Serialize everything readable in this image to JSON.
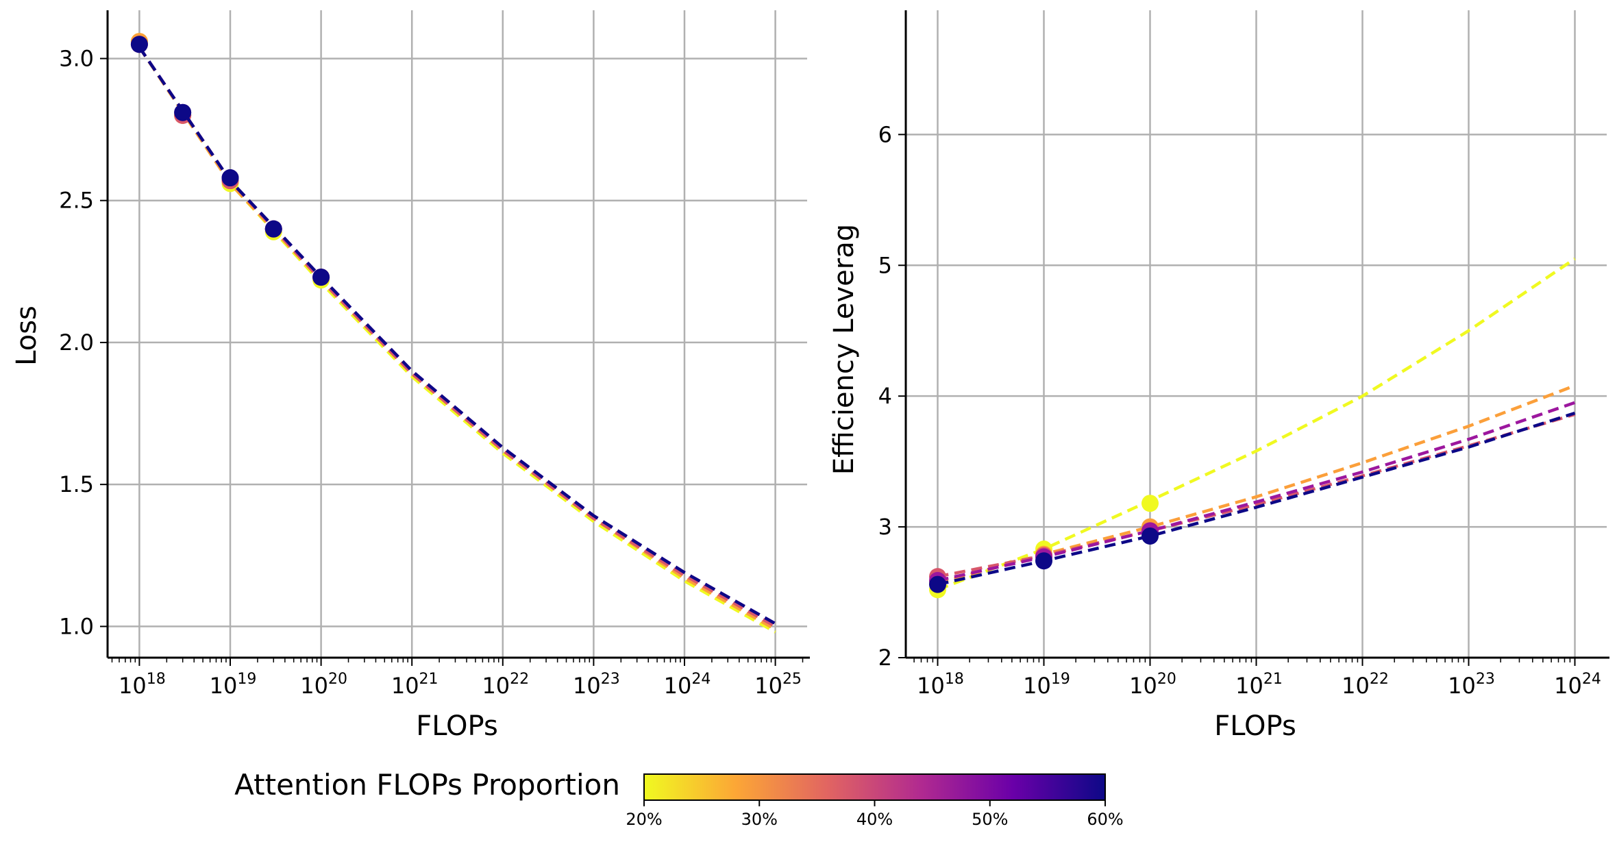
{
  "chart_data": [
    {
      "type": "line",
      "xscale": "log",
      "xlabel": "FLOPs",
      "ylabel": "Loss",
      "xlim_exp": [
        17.65,
        25.35
      ],
      "ylim": [
        0.89,
        3.17
      ],
      "x_tick_labels": [
        {
          "base": "10",
          "exp": "18"
        },
        {
          "base": "10",
          "exp": "19"
        },
        {
          "base": "10",
          "exp": "20"
        },
        {
          "base": "10",
          "exp": "21"
        },
        {
          "base": "10",
          "exp": "22"
        },
        {
          "base": "10",
          "exp": "23"
        },
        {
          "base": "10",
          "exp": "24"
        },
        {
          "base": "10",
          "exp": "25"
        }
      ],
      "y_ticks": [
        1.0,
        1.5,
        2.0,
        2.5,
        3.0
      ],
      "y_tick_labels": [
        "1.0",
        "1.5",
        "2.0",
        "2.5",
        "3.0"
      ],
      "grid": true,
      "series": [
        {
          "name": "20%",
          "color": "#f0f921",
          "points_x_exp": [
            18,
            18.477,
            19,
            19.477,
            20
          ],
          "points_y": [
            3.06,
            2.8,
            2.56,
            2.39,
            2.22
          ],
          "fit_x_exp": [
            18,
            19,
            20,
            21,
            22,
            23,
            24,
            25
          ],
          "fit_y": [
            3.04,
            2.56,
            2.21,
            1.88,
            1.61,
            1.37,
            1.16,
            0.98
          ]
        },
        {
          "name": "30%",
          "color": "#fb9f3a",
          "points_x_exp": [
            18,
            18.477,
            19,
            19.477,
            20
          ],
          "points_y": [
            3.06,
            2.8,
            2.57,
            2.4,
            2.23
          ],
          "fit_x_exp": [
            18,
            19,
            20,
            21,
            22,
            23,
            24,
            25
          ],
          "fit_y": [
            3.04,
            2.56,
            2.22,
            1.89,
            1.62,
            1.38,
            1.17,
            0.99
          ]
        },
        {
          "name": "40%",
          "color": "#d8576b",
          "points_x_exp": [
            18,
            18.477,
            19,
            19.477,
            20
          ],
          "points_y": [
            3.05,
            2.8,
            2.57,
            2.4,
            2.23
          ],
          "fit_x_exp": [
            18,
            19,
            20,
            21,
            22,
            23,
            24,
            25
          ],
          "fit_y": [
            3.04,
            2.57,
            2.22,
            1.89,
            1.62,
            1.38,
            1.18,
            1.0
          ]
        },
        {
          "name": "50%",
          "color": "#9c179e",
          "points_x_exp": [
            18,
            18.477,
            19,
            19.477,
            20
          ],
          "points_y": [
            3.05,
            2.81,
            2.58,
            2.4,
            2.23
          ],
          "fit_x_exp": [
            18,
            19,
            20,
            21,
            22,
            23,
            24,
            25
          ],
          "fit_y": [
            3.04,
            2.57,
            2.23,
            1.9,
            1.63,
            1.39,
            1.19,
            1.01
          ]
        },
        {
          "name": "60%",
          "color": "#0d0887",
          "points_x_exp": [
            18,
            18.477,
            19,
            19.477,
            20
          ],
          "points_y": [
            3.05,
            2.81,
            2.58,
            2.4,
            2.23
          ],
          "fit_x_exp": [
            18,
            19,
            20,
            21,
            22,
            23,
            24,
            25
          ],
          "fit_y": [
            3.04,
            2.57,
            2.23,
            1.9,
            1.63,
            1.39,
            1.19,
            1.01
          ]
        }
      ]
    },
    {
      "type": "line",
      "xscale": "log",
      "xlabel": "FLOPs",
      "ylabel": "Efficiency Leverag",
      "xlim_exp": [
        17.7,
        24.3
      ],
      "ylim": [
        2.0,
        6.95
      ],
      "x_tick_labels": [
        {
          "base": "10",
          "exp": "18"
        },
        {
          "base": "10",
          "exp": "19"
        },
        {
          "base": "10",
          "exp": "20"
        },
        {
          "base": "10",
          "exp": "21"
        },
        {
          "base": "10",
          "exp": "22"
        },
        {
          "base": "10",
          "exp": "23"
        },
        {
          "base": "10",
          "exp": "24"
        }
      ],
      "y_ticks": [
        2,
        3,
        4,
        5,
        6
      ],
      "y_tick_labels": [
        "2",
        "3",
        "4",
        "5",
        "6"
      ],
      "grid": true,
      "series": [
        {
          "name": "20%",
          "color": "#f0f921",
          "points_x_exp": [
            18,
            19,
            20
          ],
          "points_y": [
            2.52,
            2.83,
            3.18
          ],
          "fit_x_exp": [
            18,
            19,
            20,
            21,
            22,
            23,
            24
          ],
          "fit_y": [
            2.52,
            2.83,
            3.2,
            3.58,
            4.0,
            4.5,
            5.05
          ]
        },
        {
          "name": "30%",
          "color": "#fb9f3a",
          "points_x_exp": [
            18,
            19,
            20
          ],
          "points_y": [
            2.57,
            2.79,
            3.0
          ],
          "fit_x_exp": [
            18,
            19,
            20,
            21,
            22,
            23,
            24
          ],
          "fit_y": [
            2.57,
            2.79,
            3.0,
            3.23,
            3.49,
            3.77,
            4.08
          ]
        },
        {
          "name": "40%",
          "color": "#d8576b",
          "points_x_exp": [
            18,
            19,
            20
          ],
          "points_y": [
            2.62,
            2.78,
            2.97
          ],
          "fit_x_exp": [
            18,
            19,
            20,
            21,
            22,
            23,
            24
          ],
          "fit_y": [
            2.62,
            2.78,
            2.97,
            3.17,
            3.39,
            3.62,
            3.86
          ]
        },
        {
          "name": "50%",
          "color": "#9c179e",
          "points_x_exp": [
            18,
            19,
            20
          ],
          "points_y": [
            2.59,
            2.77,
            2.97
          ],
          "fit_x_exp": [
            18,
            19,
            20,
            21,
            22,
            23,
            24
          ],
          "fit_y": [
            2.59,
            2.77,
            2.97,
            3.19,
            3.42,
            3.67,
            3.95
          ]
        },
        {
          "name": "60%",
          "color": "#0d0887",
          "points_x_exp": [
            18,
            19,
            20
          ],
          "points_y": [
            2.56,
            2.74,
            2.93
          ],
          "fit_x_exp": [
            18,
            19,
            20,
            21,
            22,
            23,
            24
          ],
          "fit_y": [
            2.56,
            2.74,
            2.93,
            3.15,
            3.38,
            3.61,
            3.87
          ]
        }
      ]
    }
  ],
  "colorbar": {
    "title": "Attention FLOPs Proportion",
    "range": [
      20,
      60
    ],
    "tick_labels": [
      "20%",
      "30%",
      "40%",
      "50%",
      "60%"
    ],
    "colors": [
      "#f0f921",
      "#fca636",
      "#e16462",
      "#b12a90",
      "#6a00a8",
      "#0d0887"
    ]
  },
  "colors": {
    "grid": "#b0b0b0",
    "axis": "#000000"
  }
}
